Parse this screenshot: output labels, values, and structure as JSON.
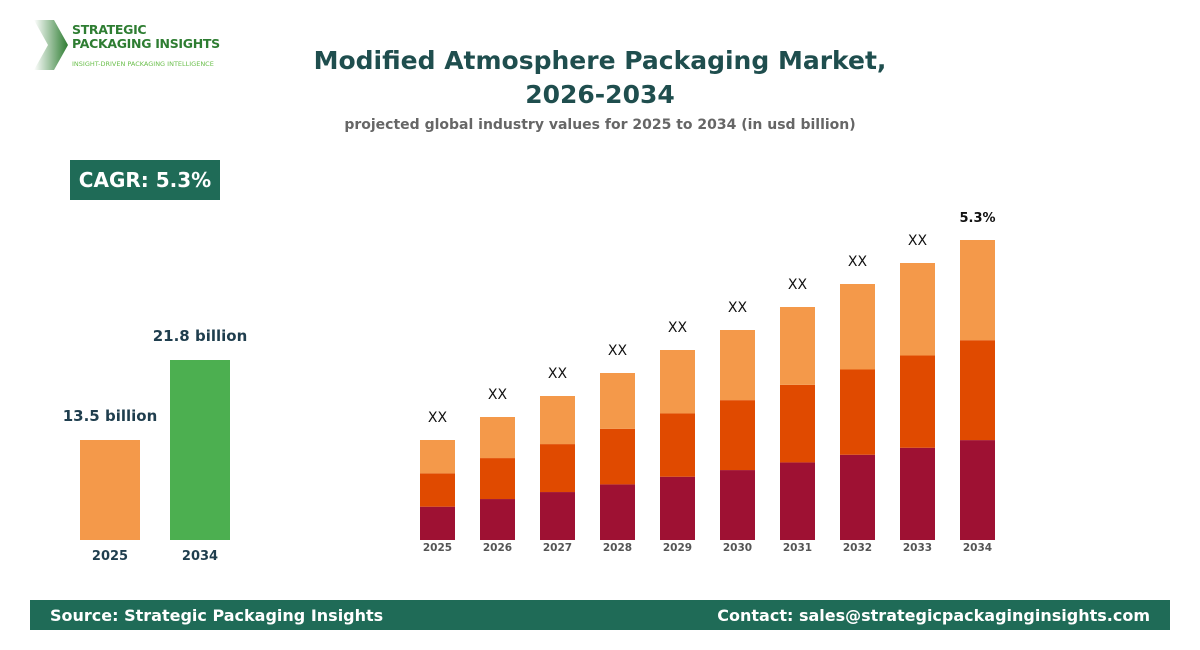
{
  "logo": {
    "line1": "STRATEGIC",
    "line2": "PACKAGING INSIGHTS",
    "tagline": "INSIGHT-DRIVEN PACKAGING INTELLIGENCE"
  },
  "header": {
    "title_line1": "Modified Atmosphere Packaging Market,",
    "title_line2": "2026-2034",
    "subtitle": "projected global industry values for 2025 to 2034 (in usd billion)"
  },
  "cagr": "CAGR: 5.3%",
  "colors": {
    "brand": "#1f6b57",
    "bar2025": "#f4994a",
    "bar2034": "#4caf50",
    "seg_bottom": "#9e1133",
    "seg_middle": "#e04a00",
    "seg_top": "#f4994a"
  },
  "chart_data": [
    {
      "type": "bar",
      "categories": [
        "2025",
        "2034"
      ],
      "values": [
        13.5,
        21.8
      ],
      "data_labels": [
        "13.5 billion",
        "21.8 billion"
      ],
      "grid": false
    },
    {
      "type": "bar",
      "stacked": true,
      "categories": [
        "2025",
        "2026",
        "2027",
        "2028",
        "2029",
        "2030",
        "2031",
        "2032",
        "2033",
        "2034"
      ],
      "relative_totals": [
        100,
        123,
        144,
        167,
        190,
        210,
        233,
        256,
        277,
        300
      ],
      "segment_shares": [
        0.333,
        0.333,
        0.334
      ],
      "data_labels": [
        "XX",
        "XX",
        "XX",
        "XX",
        "XX",
        "XX",
        "XX",
        "XX",
        "XX",
        "5.3%"
      ],
      "grid": false
    }
  ],
  "footer": {
    "source": "Source: Strategic Packaging Insights",
    "contact": "Contact: sales@strategicpackaginginsights.com"
  }
}
